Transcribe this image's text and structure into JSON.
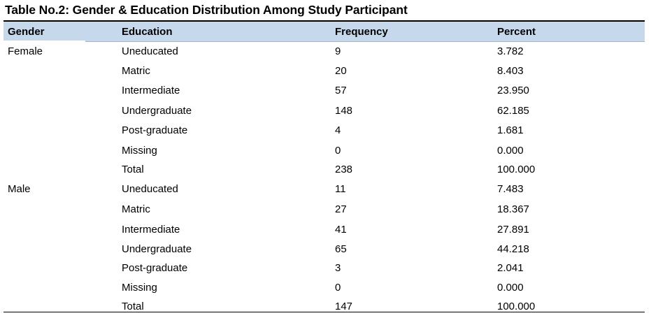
{
  "title": "Table No.2: Gender & Education Distribution Among Study Participant",
  "headers": [
    "Gender",
    "Education",
    "Frequency",
    "Percent"
  ],
  "rows": [
    [
      "Female",
      "Uneducated",
      "9",
      "3.782"
    ],
    [
      "",
      "Matric",
      "20",
      "8.403"
    ],
    [
      "",
      "Intermediate",
      "57",
      "23.950"
    ],
    [
      "",
      "Undergraduate",
      "148",
      "62.185"
    ],
    [
      "",
      "Post-graduate",
      "4",
      "1.681"
    ],
    [
      "",
      "Missing",
      "0",
      "0.000"
    ],
    [
      "",
      "Total",
      "238",
      "100.000"
    ],
    [
      "Male",
      "Uneducated",
      "11",
      "7.483"
    ],
    [
      "",
      "Matric",
      "27",
      "18.367"
    ],
    [
      "",
      "Intermediate",
      "41",
      "27.891"
    ],
    [
      "",
      "Undergraduate",
      "65",
      "44.218"
    ],
    [
      "",
      "Post-graduate",
      "3",
      "2.041"
    ],
    [
      "",
      "Missing",
      "0",
      "0.000"
    ],
    [
      "",
      "Total",
      "147",
      "100.000"
    ]
  ]
}
